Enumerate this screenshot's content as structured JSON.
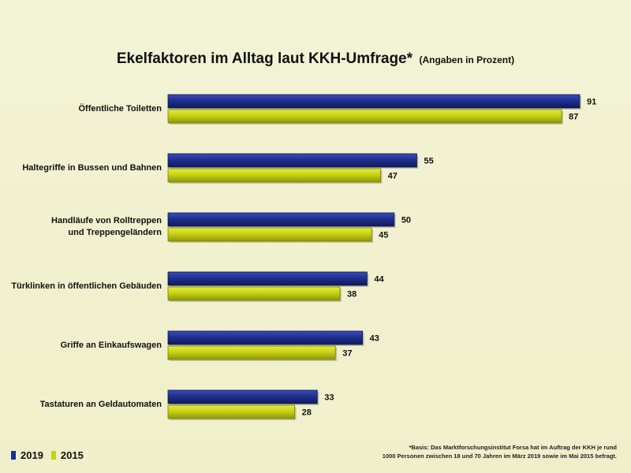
{
  "chart_data": {
    "type": "bar",
    "orientation": "horizontal",
    "title": "Ekelfaktoren im Alltag laut KKH-Umfrage*",
    "subtitle": "(Angaben in Prozent)",
    "categories": [
      "Öffentliche Toiletten",
      "Haltegriffe in Bussen und Bahnen",
      "Handläufe von Rolltreppen\nund Treppengeländern",
      "Türklinken in öffentlichen Gebäuden",
      "Griffe an Einkaufswagen",
      "Tastaturen an Geldautomaten"
    ],
    "series": [
      {
        "name": "2019",
        "color": "#1f2f8f",
        "values": [
          91,
          55,
          50,
          44,
          43,
          33
        ]
      },
      {
        "name": "2015",
        "color": "#c8d214",
        "values": [
          87,
          47,
          45,
          38,
          37,
          28
        ]
      }
    ],
    "xlim": [
      0,
      100
    ],
    "grid": false,
    "legend_position": "bottom-left",
    "footnote_lines": [
      "*Basis: Das Marktforschungsinstitut Forsa hat im Auftrag der KKH je rund",
      "1000 Personen zwischen 18 und 70 Jahren im März 2019 sowie im Mai 2015 befragt."
    ]
  }
}
